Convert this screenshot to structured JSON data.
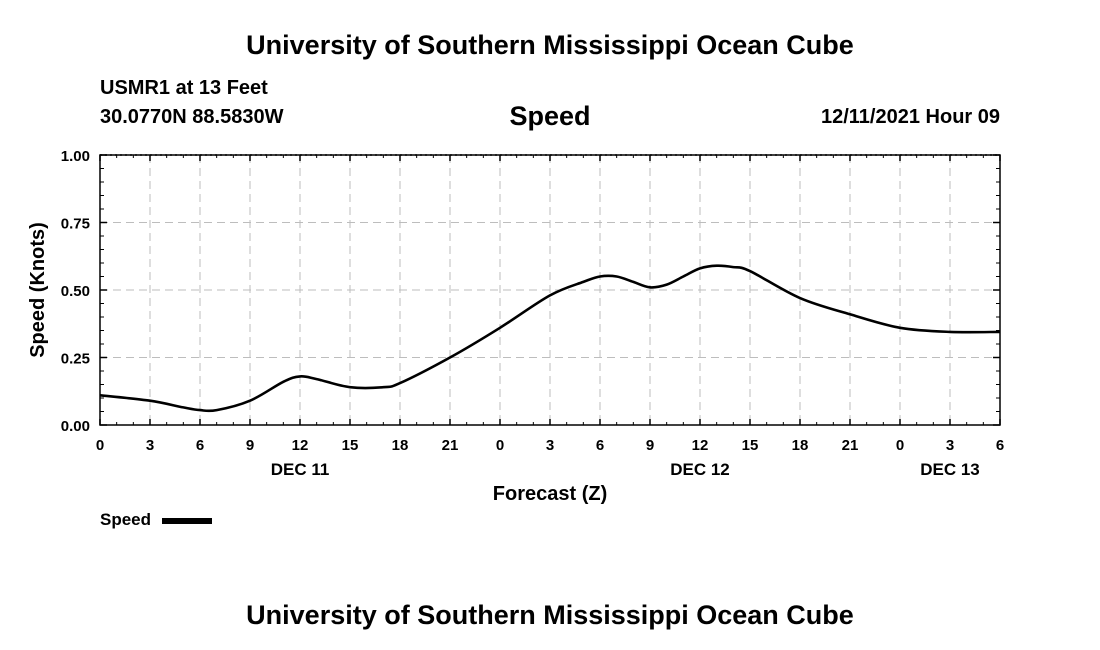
{
  "header": {
    "title": "University of Southern Mississippi Ocean Cube",
    "station": "USMR1 at 13 Feet",
    "coordinates": "30.0770N  88.5830W",
    "chart_label": "Speed",
    "datetime": "12/11/2021 Hour 09"
  },
  "legend": {
    "label": "Speed",
    "color": "#000000"
  },
  "footer": {
    "title": "University of Southern Mississippi Ocean Cube"
  },
  "chart_data": {
    "type": "line",
    "title": "Speed",
    "xlabel": "Forecast (Z)",
    "ylabel": "Speed (Knots)",
    "xlim": [
      0,
      54
    ],
    "ylim": [
      0,
      1
    ],
    "x_ticks": [
      0,
      3,
      6,
      9,
      12,
      15,
      18,
      21,
      24,
      27,
      30,
      33,
      36,
      39,
      42,
      45,
      48,
      51,
      54
    ],
    "x_tick_labels": [
      "0",
      "3",
      "6",
      "9",
      "12",
      "15",
      "18",
      "21",
      "0",
      "3",
      "6",
      "9",
      "12",
      "15",
      "18",
      "21",
      "0",
      "3",
      "6"
    ],
    "y_ticks": [
      0,
      0.25,
      0.5,
      0.75,
      1.0
    ],
    "y_tick_labels": [
      "0.00",
      "0.25",
      "0.50",
      "0.75",
      "1.00"
    ],
    "date_labels": [
      {
        "x": 12,
        "label": "DEC 11"
      },
      {
        "x": 36,
        "label": "DEC 12"
      },
      {
        "x": 51,
        "label": "DEC 13"
      }
    ],
    "grid": true,
    "legend_position": "bottom-left",
    "series": [
      {
        "name": "Speed",
        "x": [
          0,
          3,
          5,
          6,
          7,
          9,
          11,
          12,
          13,
          15,
          17,
          18,
          21,
          24,
          27,
          29,
          30,
          31,
          32,
          33,
          34,
          35,
          36,
          37,
          38,
          39,
          42,
          45,
          48,
          51,
          54
        ],
        "y": [
          0.11,
          0.09,
          0.065,
          0.055,
          0.055,
          0.09,
          0.16,
          0.18,
          0.17,
          0.14,
          0.14,
          0.155,
          0.25,
          0.36,
          0.48,
          0.53,
          0.55,
          0.55,
          0.53,
          0.51,
          0.52,
          0.55,
          0.58,
          0.59,
          0.585,
          0.57,
          0.47,
          0.41,
          0.36,
          0.345,
          0.345
        ]
      }
    ]
  }
}
